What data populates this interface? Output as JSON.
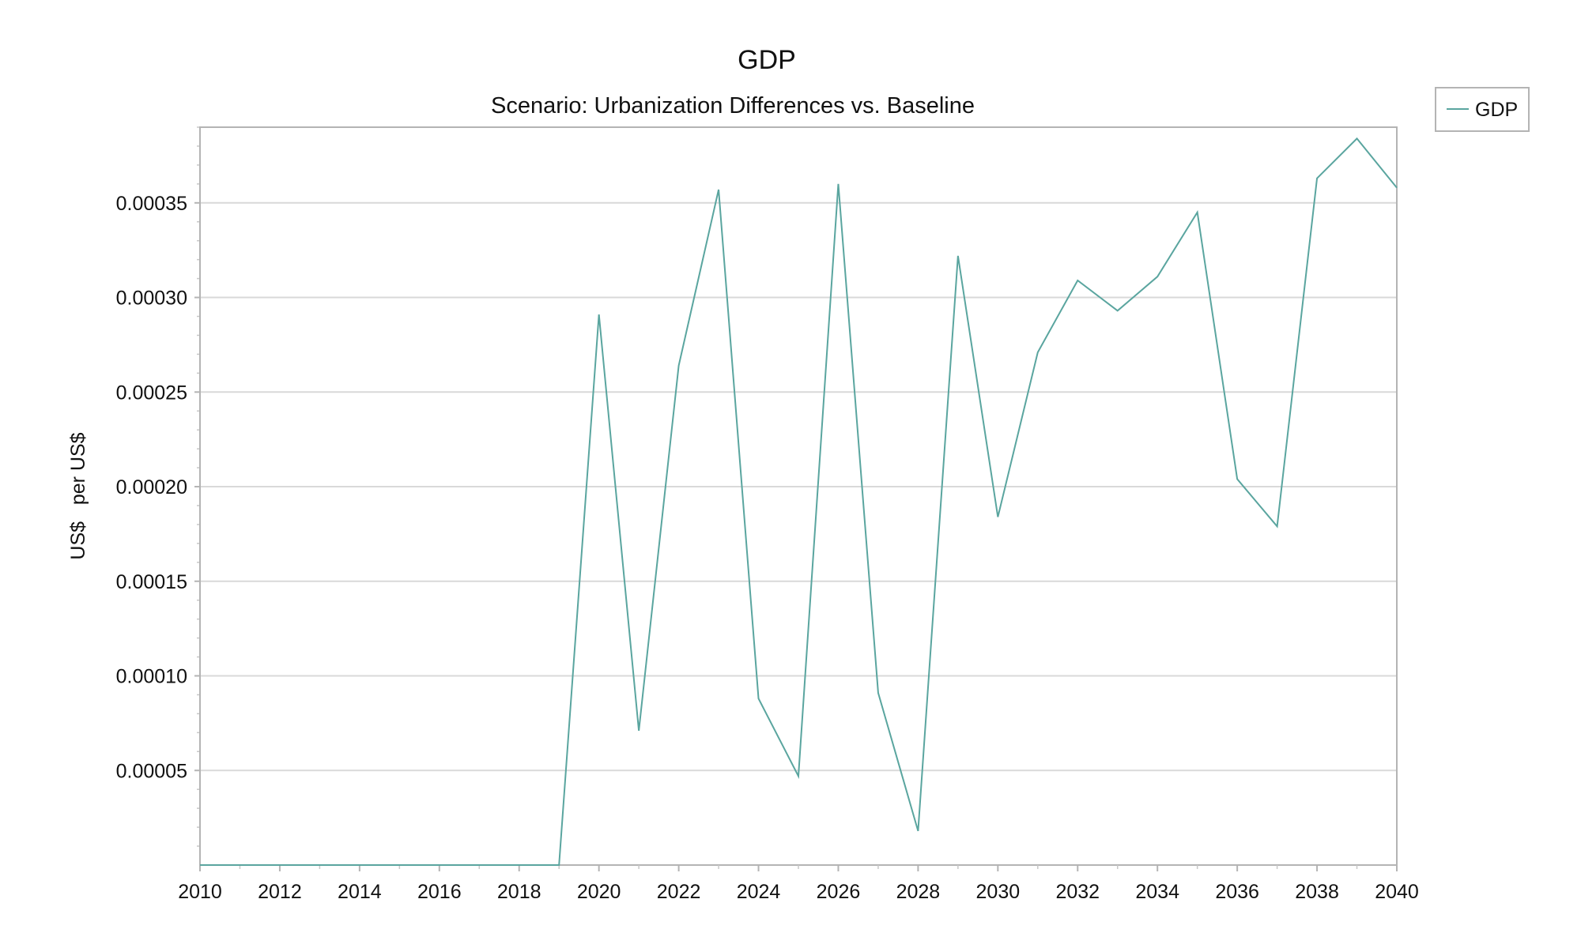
{
  "chart_data": {
    "type": "line",
    "title": "GDP",
    "subtitle": "Scenario: Urbanization Differences vs. Baseline",
    "xlabel": "",
    "ylabel": "US$   per US$",
    "xlim": [
      2010,
      2040
    ],
    "ylim": [
      0,
      0.00039
    ],
    "grid": true,
    "legend_position": "top-right",
    "x_ticks": [
      2010,
      2012,
      2014,
      2016,
      2018,
      2020,
      2022,
      2024,
      2026,
      2028,
      2030,
      2032,
      2034,
      2036,
      2038,
      2040
    ],
    "x_tick_labels": [
      "2010",
      "2012",
      "2014",
      "2016",
      "2018",
      "2020",
      "2022",
      "2024",
      "2026",
      "2028",
      "2030",
      "2032",
      "2034",
      "2036",
      "2038",
      "2040"
    ],
    "y_ticks": [
      5e-05,
      0.0001,
      0.00015,
      0.0002,
      0.00025,
      0.0003,
      0.00035
    ],
    "y_tick_labels": [
      "0.00005",
      "0.00010",
      "0.00015",
      "0.00020",
      "0.00025",
      "0.00030",
      "0.00035"
    ],
    "x": [
      2010,
      2011,
      2012,
      2013,
      2014,
      2015,
      2016,
      2017,
      2018,
      2019,
      2020,
      2021,
      2022,
      2023,
      2024,
      2025,
      2026,
      2027,
      2028,
      2029,
      2030,
      2031,
      2032,
      2033,
      2034,
      2035,
      2036,
      2037,
      2038,
      2039,
      2040
    ],
    "series": [
      {
        "name": "GDP",
        "color": "#5aa59f",
        "values": [
          0,
          0,
          0,
          0,
          0,
          0,
          0,
          0,
          0,
          0,
          0.000291,
          7.1e-05,
          0.000264,
          0.000357,
          8.8e-05,
          4.7e-05,
          0.00036,
          9.1e-05,
          1.8e-05,
          0.000322,
          0.000184,
          0.000271,
          0.000309,
          0.000293,
          0.000311,
          0.000345,
          0.000204,
          0.000179,
          0.000363,
          0.000384,
          0.000358
        ]
      }
    ]
  }
}
